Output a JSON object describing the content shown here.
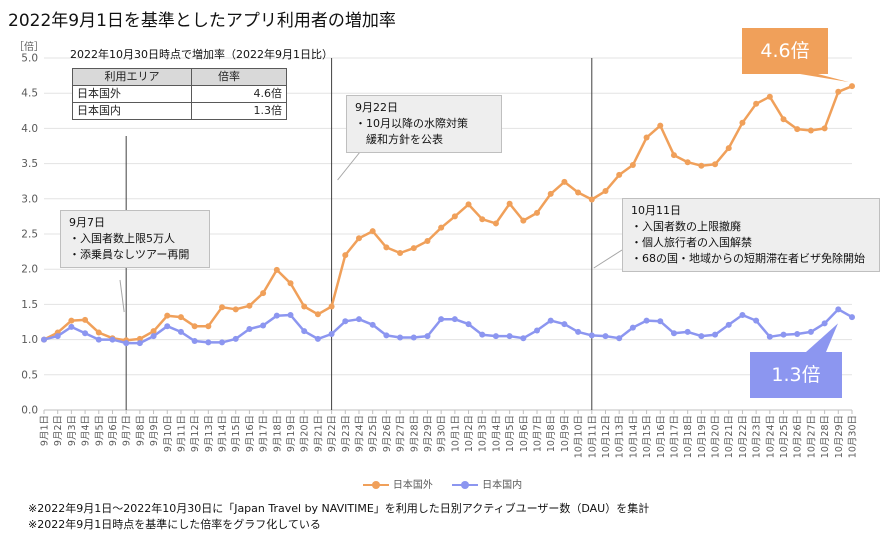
{
  "title": "2022年9月1日を基準としたアプリ利用者の増加率",
  "unit": "［倍］",
  "table": {
    "caption": "2022年10月30日時点で増加率（2022年9月1日比）",
    "headers": [
      "利用エリア",
      "倍率"
    ],
    "rows": [
      {
        "area": "日本国外",
        "rate": "4.6倍"
      },
      {
        "area": "日本国内",
        "rate": "1.3倍"
      }
    ]
  },
  "annotations": [
    {
      "lines": [
        "9月7日",
        "・入国者数上限5万人",
        "・添乗員なしツアー再開"
      ]
    },
    {
      "lines": [
        "9月22日",
        "・10月以降の水際対策",
        "　緩和方針を公表"
      ]
    },
    {
      "lines": [
        "10月11日",
        "・入国者数の上限撤廃",
        "・個人旅行者の入国解禁",
        "・68の国・地域からの短期滞在者ビザ免除開始"
      ]
    }
  ],
  "badges": {
    "overseas": {
      "text": "4.6倍",
      "color": "#f0a05a"
    },
    "domestic": {
      "text": "1.3倍",
      "color": "#8c96f0"
    }
  },
  "footnotes": [
    "※2022年9月1日～2022年10月30日に「Japan Travel by NAVITIME」を利用した日別アクティブユーザー数（DAU）を集計",
    "※2022年9月1日時点を基準にした倍率をグラフ化している"
  ],
  "chart_data": {
    "type": "line",
    "categories": [
      "9月1日",
      "9月2日",
      "9月3日",
      "9月4日",
      "9月5日",
      "9月6日",
      "9月7日",
      "9月8日",
      "9月9日",
      "9月10日",
      "9月11日",
      "9月12日",
      "9月13日",
      "9月14日",
      "9月15日",
      "9月16日",
      "9月17日",
      "9月18日",
      "9月19日",
      "9月20日",
      "9月21日",
      "9月22日",
      "9月23日",
      "9月24日",
      "9月25日",
      "9月26日",
      "9月27日",
      "9月28日",
      "9月29日",
      "9月30日",
      "10月1日",
      "10月2日",
      "10月3日",
      "10月4日",
      "10月5日",
      "10月6日",
      "10月7日",
      "10月8日",
      "10月9日",
      "10月10日",
      "10月11日",
      "10月12日",
      "10月13日",
      "10月14日",
      "10月15日",
      "10月16日",
      "10月17日",
      "10月18日",
      "10月19日",
      "10月20日",
      "10月21日",
      "10月22日",
      "10月23日",
      "10月24日",
      "10月25日",
      "10月26日",
      "10月27日",
      "10月28日",
      "10月29日",
      "10月30日"
    ],
    "series": [
      {
        "name": "日本国外",
        "color": "#f0a05a",
        "values": [
          1.0,
          1.1,
          1.27,
          1.28,
          1.1,
          1.02,
          0.99,
          1.01,
          1.12,
          1.34,
          1.32,
          1.19,
          1.19,
          1.46,
          1.43,
          1.48,
          1.66,
          1.99,
          1.8,
          1.47,
          1.36,
          1.47,
          2.2,
          2.44,
          2.54,
          2.31,
          2.23,
          2.3,
          2.4,
          2.59,
          2.75,
          2.92,
          2.71,
          2.65,
          2.93,
          2.69,
          2.8,
          3.07,
          3.24,
          3.09,
          2.99,
          3.11,
          3.34,
          3.48,
          3.87,
          4.04,
          3.62,
          3.52,
          3.47,
          3.49,
          3.72,
          4.08,
          4.35,
          4.45,
          4.13,
          3.99,
          3.97,
          4.0,
          4.52,
          4.6
        ]
      },
      {
        "name": "日本国内",
        "color": "#8c96f0",
        "values": [
          1.0,
          1.05,
          1.18,
          1.09,
          1.0,
          1.0,
          0.95,
          0.95,
          1.05,
          1.19,
          1.11,
          0.98,
          0.96,
          0.96,
          1.01,
          1.15,
          1.2,
          1.34,
          1.35,
          1.12,
          1.01,
          1.08,
          1.26,
          1.29,
          1.21,
          1.06,
          1.03,
          1.03,
          1.05,
          1.29,
          1.29,
          1.22,
          1.07,
          1.05,
          1.05,
          1.02,
          1.13,
          1.27,
          1.22,
          1.11,
          1.06,
          1.05,
          1.02,
          1.17,
          1.27,
          1.26,
          1.09,
          1.11,
          1.05,
          1.07,
          1.21,
          1.35,
          1.27,
          1.04,
          1.07,
          1.08,
          1.11,
          1.23,
          1.43,
          1.32
        ]
      }
    ],
    "yticks": [
      "0.0",
      "0.5",
      "1.0",
      "1.5",
      "2.0",
      "2.5",
      "3.0",
      "3.5",
      "4.0",
      "4.5",
      "5.0"
    ],
    "ylim": [
      0,
      5
    ],
    "event_markers": [
      "9月7日",
      "9月22日",
      "10月11日"
    ],
    "grid": true,
    "legend_position": "bottom"
  }
}
